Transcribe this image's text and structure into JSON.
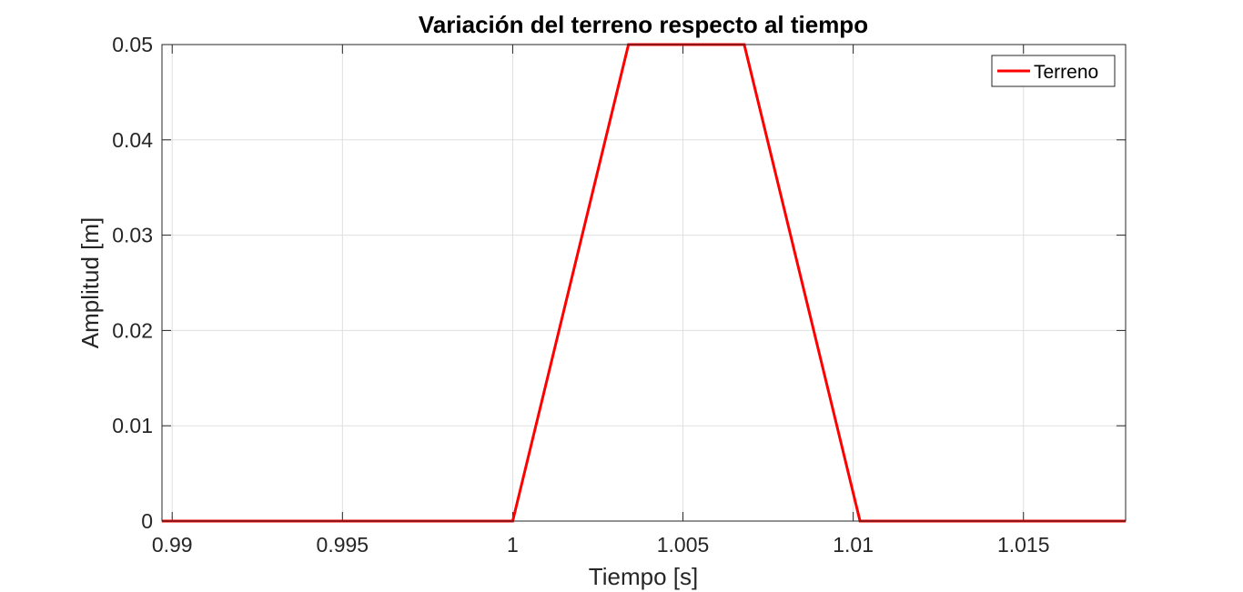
{
  "chart_data": {
    "type": "line",
    "title": "Variación del terreno respecto al tiempo",
    "xlabel": "Tiempo [s]",
    "ylabel": "Amplitud [m]",
    "xlim": [
      0.9897,
      1.018
    ],
    "ylim": [
      0,
      0.05
    ],
    "xticks": [
      0.99,
      0.995,
      1,
      1.005,
      1.01,
      1.015
    ],
    "xtick_labels": [
      "0.99",
      "0.995",
      "1",
      "1.005",
      "1.01",
      "1.015"
    ],
    "yticks": [
      0,
      0.01,
      0.02,
      0.03,
      0.04,
      0.05
    ],
    "ytick_labels": [
      "0",
      "0.01",
      "0.02",
      "0.03",
      "0.04",
      "0.05"
    ],
    "grid": true,
    "legend_position": "top-right",
    "series": [
      {
        "name": "Terreno",
        "color": "#ff0000",
        "x": [
          0.9897,
          1.0,
          1.0034,
          1.0068,
          1.0102,
          1.018
        ],
        "y": [
          0,
          0,
          0.05,
          0.05,
          0,
          0
        ]
      }
    ]
  }
}
